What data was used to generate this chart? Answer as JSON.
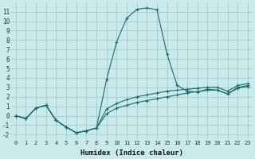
{
  "xlabel": "Humidex (Indice chaleur)",
  "background_color": "#c8eaea",
  "grid_color": "#aacccc",
  "line_color": "#1a6b6b",
  "xlim": [
    -0.5,
    23.5
  ],
  "ylim": [
    -2.5,
    12.0
  ],
  "xticks": [
    0,
    1,
    2,
    3,
    4,
    5,
    6,
    7,
    8,
    9,
    10,
    11,
    12,
    13,
    14,
    15,
    16,
    17,
    18,
    19,
    20,
    21,
    22,
    23
  ],
  "yticks": [
    -2,
    -1,
    0,
    1,
    2,
    3,
    4,
    5,
    6,
    7,
    8,
    9,
    10,
    11
  ],
  "line1_x": [
    0,
    1,
    2,
    3,
    4,
    5,
    6,
    7,
    8,
    9,
    10,
    11,
    12,
    13,
    14,
    15,
    16,
    17,
    18,
    19,
    20,
    21,
    22,
    23
  ],
  "line1_y": [
    0.0,
    -0.3,
    0.8,
    1.1,
    -0.5,
    -1.2,
    -1.8,
    -1.6,
    -1.3,
    3.8,
    7.8,
    10.3,
    11.25,
    11.4,
    11.2,
    6.5,
    3.2,
    2.6,
    2.5,
    2.8,
    2.7,
    2.3,
    3.0,
    3.2
  ],
  "line2_x": [
    0,
    1,
    2,
    3,
    4,
    5,
    6,
    7,
    8,
    9,
    10,
    11,
    12,
    13,
    14,
    15,
    16,
    17,
    18,
    19,
    20,
    21,
    22,
    23
  ],
  "line2_y": [
    0.0,
    -0.3,
    0.8,
    1.1,
    -0.5,
    -1.2,
    -1.8,
    -1.6,
    -1.3,
    0.7,
    1.3,
    1.7,
    2.0,
    2.2,
    2.4,
    2.6,
    2.7,
    2.8,
    2.9,
    3.0,
    3.0,
    2.6,
    3.2,
    3.4
  ],
  "line3_x": [
    0,
    1,
    2,
    3,
    4,
    5,
    6,
    7,
    8,
    9,
    10,
    11,
    12,
    13,
    14,
    15,
    16,
    17,
    18,
    19,
    20,
    21,
    22,
    23
  ],
  "line3_y": [
    0.0,
    -0.3,
    0.8,
    1.1,
    -0.5,
    -1.2,
    -1.8,
    -1.6,
    -1.3,
    0.2,
    0.8,
    1.1,
    1.4,
    1.6,
    1.8,
    2.0,
    2.2,
    2.4,
    2.55,
    2.7,
    2.7,
    2.3,
    2.9,
    3.1
  ]
}
